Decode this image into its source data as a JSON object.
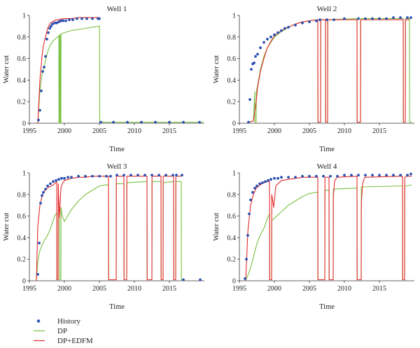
{
  "colors": {
    "history": "#2a4fb0",
    "dp": "#7ac143",
    "edfm": "#e32b2b"
  },
  "legend": {
    "items": [
      {
        "label": "History",
        "key": "history",
        "style": "dot"
      },
      {
        "label": "DP",
        "key": "dp",
        "style": "line"
      },
      {
        "label": "DP+EDFM",
        "key": "edfm",
        "style": "line"
      }
    ]
  },
  "chart_data": [
    {
      "type": "line",
      "title": "Well 1",
      "xlabel": "Time",
      "ylabel": "Water cut",
      "xlim": [
        1995,
        2020
      ],
      "ylim": [
        0,
        1
      ],
      "xticks": [
        "1995",
        "2000",
        "2005",
        "2010",
        "2015"
      ],
      "yticks": [
        "0",
        "0.2",
        "0.4",
        "0.6",
        "0.8",
        "1"
      ],
      "series": [
        {
          "name": "History",
          "style": "dot",
          "x": [
            1996.3,
            1996.5,
            1996.7,
            1996.9,
            1997.1,
            1997.3,
            1997.5,
            1997.7,
            1997.9,
            1998.1,
            1998.3,
            1998.6,
            1998.9,
            1999.2,
            1999.5,
            1999.8,
            2000.2,
            2000.7,
            2001.2,
            2001.8,
            2002.5,
            2003.2,
            2004.0,
            2004.8,
            2005.0,
            2005.2,
            2007,
            2009,
            2011,
            2013,
            2015,
            2017,
            2019.3
          ],
          "y": [
            0.03,
            0.12,
            0.3,
            0.48,
            0.52,
            0.62,
            0.78,
            0.84,
            0.88,
            0.9,
            0.92,
            0.93,
            0.93,
            0.94,
            0.95,
            0.95,
            0.95,
            0.96,
            0.96,
            0.97,
            0.97,
            0.97,
            0.97,
            0.97,
            0.97,
            0.01,
            0.01,
            0.01,
            0.01,
            0.01,
            0.01,
            0.01,
            0.01
          ]
        },
        {
          "name": "DP",
          "style": "line",
          "x": [
            1996.2,
            1996.5,
            1996.8,
            1997.0,
            1997.3,
            1997.6,
            1998.0,
            1998.5,
            1999.0,
            1999.2,
            1999.22,
            1999.3,
            1999.32,
            1999.4,
            1999.42,
            1999.5,
            1999.52,
            1999.6,
            2000.0,
            2001.0,
            2002.0,
            2003.0,
            2004.0,
            2005.0,
            2005.02,
            2005.05,
            2010,
            2015,
            2019.8
          ],
          "y": [
            0,
            0.3,
            0.45,
            0.5,
            0.58,
            0.66,
            0.73,
            0.77,
            0.8,
            0.81,
            0,
            0,
            0.82,
            0.82,
            0,
            0,
            0.83,
            0.83,
            0.84,
            0.86,
            0.87,
            0.88,
            0.89,
            0.9,
            0.9,
            0.01,
            0.01,
            0.01,
            0.01
          ]
        },
        {
          "name": "DP+EDFM",
          "style": "line",
          "x": [
            1996.2,
            1996.5,
            1996.8,
            1997.0,
            1997.3,
            1997.6,
            1998.0,
            1998.5,
            1999.0,
            2000.0,
            2001.0,
            2002.0,
            2003.0,
            2004.0,
            2005.0
          ],
          "y": [
            0,
            0.4,
            0.62,
            0.72,
            0.8,
            0.88,
            0.93,
            0.95,
            0.96,
            0.97,
            0.97,
            0.98,
            0.98,
            0.98,
            0.98
          ]
        }
      ]
    },
    {
      "type": "line",
      "title": "Well 2",
      "xlabel": "Time",
      "ylabel": "Water cut",
      "xlim": [
        1995,
        2020
      ],
      "ylim": [
        0,
        1
      ],
      "xticks": [
        "1995",
        "2000",
        "2005",
        "2010",
        "2015"
      ],
      "yticks": [
        "0",
        "0.2",
        "0.4",
        "0.6",
        "0.8",
        "1"
      ],
      "series": [
        {
          "name": "History",
          "style": "dot",
          "x": [
            1996.3,
            1996.5,
            1996.7,
            1996.9,
            1997.1,
            1997.3,
            1997.6,
            1998.0,
            1998.5,
            1999.0,
            1999.5,
            2000.0,
            2000.5,
            2001.0,
            2001.5,
            2002.0,
            2003.0,
            2004.0,
            2005.0,
            2006.0,
            2006.5,
            2007.5,
            2008.5,
            2010,
            2012,
            2013,
            2014,
            2015,
            2016,
            2017,
            2018,
            2019,
            2019.5
          ],
          "y": [
            0.01,
            0.22,
            0.5,
            0.55,
            0.56,
            0.62,
            0.64,
            0.7,
            0.75,
            0.78,
            0.8,
            0.82,
            0.84,
            0.86,
            0.88,
            0.89,
            0.91,
            0.93,
            0.94,
            0.95,
            0.96,
            0.96,
            0.96,
            0.97,
            0.97,
            0.97,
            0.97,
            0.97,
            0.97,
            0.98,
            0.98,
            0.98,
            0.98
          ]
        },
        {
          "name": "DP",
          "style": "line",
          "x": [
            1996.3,
            1997.0,
            1997.2,
            1997.22,
            1997.4,
            1997.42,
            1997.6,
            1998.0,
            1998.5,
            1999.0,
            1999.5,
            2000.0,
            2001.0,
            2002.0,
            2003.0,
            2004.0,
            2005.0,
            2006.2,
            2006.22,
            2006.6,
            2006.62,
            2007.3,
            2007.32,
            2007.6,
            2007.62,
            2011.8,
            2011.82,
            2012.3,
            2012.32,
            2018.4,
            2018.42,
            2018.7,
            2018.72,
            2019.3,
            2019.32,
            2019.6
          ],
          "y": [
            0.01,
            0.02,
            0.29,
            0.01,
            0.01,
            0.3,
            0.35,
            0.5,
            0.62,
            0.7,
            0.75,
            0.8,
            0.85,
            0.89,
            0.92,
            0.94,
            0.95,
            0.96,
            0.01,
            0.01,
            0.96,
            0.96,
            0.01,
            0.01,
            0.96,
            0.97,
            0.01,
            0.01,
            0.97,
            0.97,
            0.01,
            0.01,
            0.97,
            0.97,
            0.01,
            0.01
          ]
        },
        {
          "name": "DP+EDFM",
          "style": "line",
          "x": [
            1996.3,
            1997.0,
            1997.4,
            1997.6,
            1998.0,
            1998.5,
            1999.0,
            1999.5,
            2000.0,
            2001.0,
            2002.0,
            2003.0,
            2004.0,
            2005.0,
            2006.2,
            2006.22,
            2006.6,
            2006.62,
            2007.3,
            2007.32,
            2007.6,
            2007.62,
            2011.8,
            2011.82,
            2012.3,
            2012.32,
            2018.4,
            2018.42,
            2018.7,
            2018.72,
            2019.3
          ],
          "y": [
            0.01,
            0.02,
            0.2,
            0.33,
            0.48,
            0.6,
            0.7,
            0.76,
            0.81,
            0.86,
            0.89,
            0.92,
            0.94,
            0.95,
            0.96,
            0.01,
            0.01,
            0.96,
            0.96,
            0.01,
            0.01,
            0.96,
            0.96,
            0.01,
            0.01,
            0.96,
            0.96,
            0.01,
            0.01,
            0.96,
            0.96
          ]
        }
      ]
    },
    {
      "type": "line",
      "title": "Well 3",
      "xlabel": "Time",
      "ylabel": "Water cut",
      "xlim": [
        1995,
        2020
      ],
      "ylim": [
        0,
        1
      ],
      "xticks": [
        "1995",
        "2000",
        "2005",
        "2010",
        "2015"
      ],
      "yticks": [
        "0",
        "0.2",
        "0.4",
        "0.6",
        "0.8",
        "1"
      ],
      "series": [
        {
          "name": "History",
          "style": "dot",
          "x": [
            1996.2,
            1996.4,
            1996.6,
            1996.8,
            1997.0,
            1997.3,
            1997.6,
            1998.0,
            1998.4,
            1998.8,
            1999.2,
            1999.6,
            2000.0,
            2000.5,
            2001.0,
            2002.0,
            2003.0,
            2004.0,
            2005.0,
            2006.0,
            2006.6,
            2007.5,
            2008.5,
            2009.5,
            2010.5,
            2011.5,
            2012.5,
            2013.5,
            2014.5,
            2015.5,
            2016.0,
            2016.8,
            2017.0,
            2019.4
          ],
          "y": [
            0.06,
            0.35,
            0.72,
            0.79,
            0.82,
            0.85,
            0.88,
            0.9,
            0.92,
            0.93,
            0.94,
            0.95,
            0.95,
            0.96,
            0.96,
            0.97,
            0.97,
            0.97,
            0.97,
            0.97,
            0.97,
            0.98,
            0.98,
            0.98,
            0.98,
            0.98,
            0.98,
            0.98,
            0.98,
            0.98,
            0.98,
            0.98,
            0.01,
            0.01
          ]
        },
        {
          "name": "DP",
          "style": "line",
          "x": [
            1996.0,
            1996.2,
            1996.5,
            1996.8,
            1997.0,
            1997.4,
            1997.8,
            1998.2,
            1998.6,
            1998.9,
            1998.92,
            1999.1,
            1999.12,
            1999.3,
            1999.32,
            1999.5,
            1999.52,
            1999.7,
            2000.0,
            2001.0,
            2002.0,
            2003.0,
            2004.0,
            2005.0,
            2006.0,
            2006.3,
            2006.32,
            2007.4,
            2007.42,
            2008.5,
            2008.52,
            2008.9,
            2008.92,
            2011.8,
            2011.82,
            2012.5,
            2012.52,
            2013.8,
            2013.82,
            2014.1,
            2014.12,
            2015.6,
            2015.62,
            2015.9,
            2015.92,
            2016.7,
            2016.72,
            2016.95
          ],
          "y": [
            0,
            0.18,
            0.28,
            0.33,
            0.36,
            0.4,
            0.45,
            0.52,
            0.6,
            0.63,
            0.01,
            0.01,
            0.65,
            0.66,
            0.01,
            0.01,
            0.68,
            0.6,
            0.55,
            0.66,
            0.74,
            0.8,
            0.84,
            0.88,
            0.89,
            0.89,
            0.01,
            0.01,
            0.9,
            0.9,
            0.01,
            0.01,
            0.91,
            0.92,
            0.01,
            0.01,
            0.92,
            0.92,
            0.01,
            0.01,
            0.91,
            0.92,
            0.01,
            0.01,
            0.92,
            0.92,
            0.01,
            0.01
          ]
        },
        {
          "name": "DP+EDFM",
          "style": "line",
          "x": [
            1996.0,
            1996.2,
            1996.5,
            1996.8,
            1997.0,
            1997.4,
            1997.8,
            1998.2,
            1998.6,
            1998.9,
            1998.92,
            1999.1,
            1999.12,
            1999.3,
            1999.5,
            1999.7,
            2000.0,
            2001.0,
            2002.0,
            2003.0,
            2004.0,
            2005.0,
            2006.0,
            2006.3,
            2006.32,
            2007.4,
            2007.42,
            2008.5,
            2008.52,
            2008.9,
            2008.92,
            2011.8,
            2011.82,
            2012.5,
            2012.52,
            2013.8,
            2013.82,
            2014.1,
            2014.12,
            2015.6,
            2015.62,
            2015.9,
            2015.92,
            2016.7
          ],
          "y": [
            0,
            0.5,
            0.7,
            0.78,
            0.82,
            0.85,
            0.87,
            0.88,
            0.9,
            0.92,
            0.01,
            0.01,
            0.9,
            0.58,
            0.86,
            0.9,
            0.93,
            0.95,
            0.96,
            0.96,
            0.97,
            0.97,
            0.97,
            0.97,
            0.01,
            0.01,
            0.97,
            0.97,
            0.01,
            0.01,
            0.97,
            0.97,
            0.01,
            0.01,
            0.97,
            0.97,
            0.01,
            0.01,
            0.97,
            0.97,
            0.01,
            0.01,
            0.97,
            0.97
          ]
        }
      ]
    },
    {
      "type": "line",
      "title": "Well 4",
      "xlabel": "Time",
      "ylabel": "Water cut",
      "xlim": [
        1995,
        2020
      ],
      "ylim": [
        0,
        1
      ],
      "xticks": [
        "1995",
        "2000",
        "2005",
        "2010",
        "2015"
      ],
      "yticks": [
        "0",
        "0.2",
        "0.4",
        "0.6",
        "0.8",
        "1"
      ],
      "series": [
        {
          "name": "History",
          "style": "dot",
          "x": [
            1995.8,
            1996.0,
            1996.2,
            1996.4,
            1996.6,
            1996.9,
            1997.2,
            1997.5,
            1997.9,
            1998.3,
            1998.7,
            1999.1,
            1999.5,
            2000.0,
            2000.5,
            2001.0,
            2002.0,
            2003.0,
            2004.0,
            2005.0,
            2006.0,
            2007.0,
            2008.0,
            2009.0,
            2010.0,
            2011.0,
            2012.0,
            2013.0,
            2014.0,
            2015.0,
            2016.0,
            2017.0,
            2018.0,
            2019.0,
            2019.5
          ],
          "y": [
            0.02,
            0.2,
            0.42,
            0.62,
            0.75,
            0.82,
            0.86,
            0.88,
            0.9,
            0.91,
            0.92,
            0.93,
            0.94,
            0.95,
            0.95,
            0.96,
            0.96,
            0.96,
            0.97,
            0.97,
            0.97,
            0.97,
            0.97,
            0.97,
            0.98,
            0.98,
            0.98,
            0.98,
            0.98,
            0.98,
            0.98,
            0.98,
            0.98,
            0.98,
            0.99
          ]
        },
        {
          "name": "DP",
          "style": "line",
          "x": [
            1995.9,
            1996.2,
            1996.6,
            1997.0,
            1997.4,
            1997.8,
            1998.2,
            1998.6,
            1999.0,
            1999.3,
            1999.32,
            1999.6,
            1999.62,
            2000.0,
            2001.0,
            2002.0,
            2003.0,
            2004.0,
            2005.0,
            2006.0,
            2006.2,
            2006.22,
            2007.2,
            2007.22,
            2007.8,
            2007.82,
            2008.4,
            2008.42,
            2011.8,
            2011.82,
            2012.4,
            2012.42,
            2018.3,
            2018.32,
            2018.6,
            2018.62,
            2019.0,
            2019.6
          ],
          "y": [
            0,
            0.05,
            0.12,
            0.22,
            0.32,
            0.4,
            0.45,
            0.5,
            0.58,
            0.62,
            0.01,
            0.01,
            0.56,
            0.58,
            0.64,
            0.7,
            0.74,
            0.78,
            0.81,
            0.82,
            0.82,
            0.01,
            0.01,
            0.84,
            0.84,
            0.01,
            0.01,
            0.85,
            0.86,
            0.01,
            0.01,
            0.87,
            0.88,
            0.01,
            0.01,
            0.88,
            0.88,
            0.89
          ]
        },
        {
          "name": "DP+EDFM",
          "style": "line",
          "x": [
            1995.9,
            1996.2,
            1996.6,
            1997.0,
            1997.4,
            1997.8,
            1998.2,
            1998.6,
            1999.0,
            1999.3,
            1999.32,
            1999.6,
            1999.62,
            1999.9,
            2000.2,
            2001.0,
            2002.0,
            2003.0,
            2004.0,
            2005.0,
            2006.0,
            2006.2,
            2006.22,
            2007.2,
            2007.22,
            2007.8,
            2007.82,
            2008.4,
            2008.42,
            2008.6,
            2008.9,
            2011.8,
            2011.82,
            2012.4,
            2012.42,
            2012.6,
            2012.9,
            2018.3,
            2018.32,
            2018.6,
            2018.62,
            2019.0,
            2019.6
          ],
          "y": [
            0,
            0.45,
            0.7,
            0.8,
            0.86,
            0.88,
            0.9,
            0.91,
            0.92,
            0.92,
            0.01,
            0.01,
            0.8,
            0.68,
            0.88,
            0.93,
            0.94,
            0.95,
            0.96,
            0.96,
            0.96,
            0.96,
            0.01,
            0.01,
            0.96,
            0.96,
            0.01,
            0.01,
            0.78,
            0.92,
            0.96,
            0.97,
            0.01,
            0.01,
            0.72,
            0.9,
            0.96,
            0.97,
            0.01,
            0.01,
            0.96,
            0.97,
            0.97
          ]
        }
      ]
    }
  ]
}
